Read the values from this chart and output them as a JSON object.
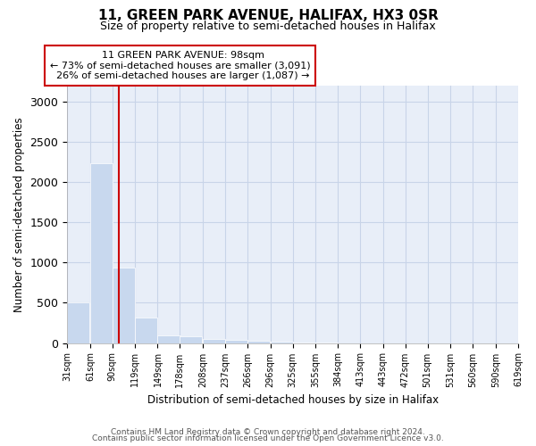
{
  "title": "11, GREEN PARK AVENUE, HALIFAX, HX3 0SR",
  "subtitle": "Size of property relative to semi-detached houses in Halifax",
  "xlabel": "Distribution of semi-detached houses by size in Halifax",
  "ylabel": "Number of semi-detached properties",
  "footnote1": "Contains HM Land Registry data © Crown copyright and database right 2024.",
  "footnote2": "Contains public sector information licensed under the Open Government Licence v3.0.",
  "property_size": 98,
  "property_label": "11 GREEN PARK AVENUE: 98sqm",
  "smaller_pct": 73,
  "smaller_count": "3,091",
  "larger_pct": 26,
  "larger_count": "1,087",
  "bin_edges": [
    31,
    61,
    90,
    119,
    149,
    178,
    208,
    237,
    266,
    296,
    325,
    355,
    384,
    413,
    443,
    472,
    501,
    531,
    560,
    590,
    619
  ],
  "bin_labels": [
    "31sqm",
    "61sqm",
    "90sqm",
    "119sqm",
    "149sqm",
    "178sqm",
    "208sqm",
    "237sqm",
    "266sqm",
    "296sqm",
    "325sqm",
    "355sqm",
    "384sqm",
    "413sqm",
    "443sqm",
    "472sqm",
    "501sqm",
    "531sqm",
    "560sqm",
    "590sqm",
    "619sqm"
  ],
  "counts": [
    510,
    2230,
    940,
    320,
    95,
    80,
    55,
    38,
    25,
    18,
    10,
    5,
    0,
    0,
    0,
    0,
    0,
    0,
    0,
    0
  ],
  "bar_color": "#c8d8ee",
  "bar_edge_color": "#ffffff",
  "grid_color": "#c8d4e8",
  "background_color": "#e8eef8",
  "annotation_box_color": "#ffffff",
  "annotation_box_edge": "#cc0000",
  "vline_color": "#cc0000",
  "ylim": [
    0,
    3200
  ],
  "yticks": [
    0,
    500,
    1000,
    1500,
    2000,
    2500,
    3000
  ]
}
